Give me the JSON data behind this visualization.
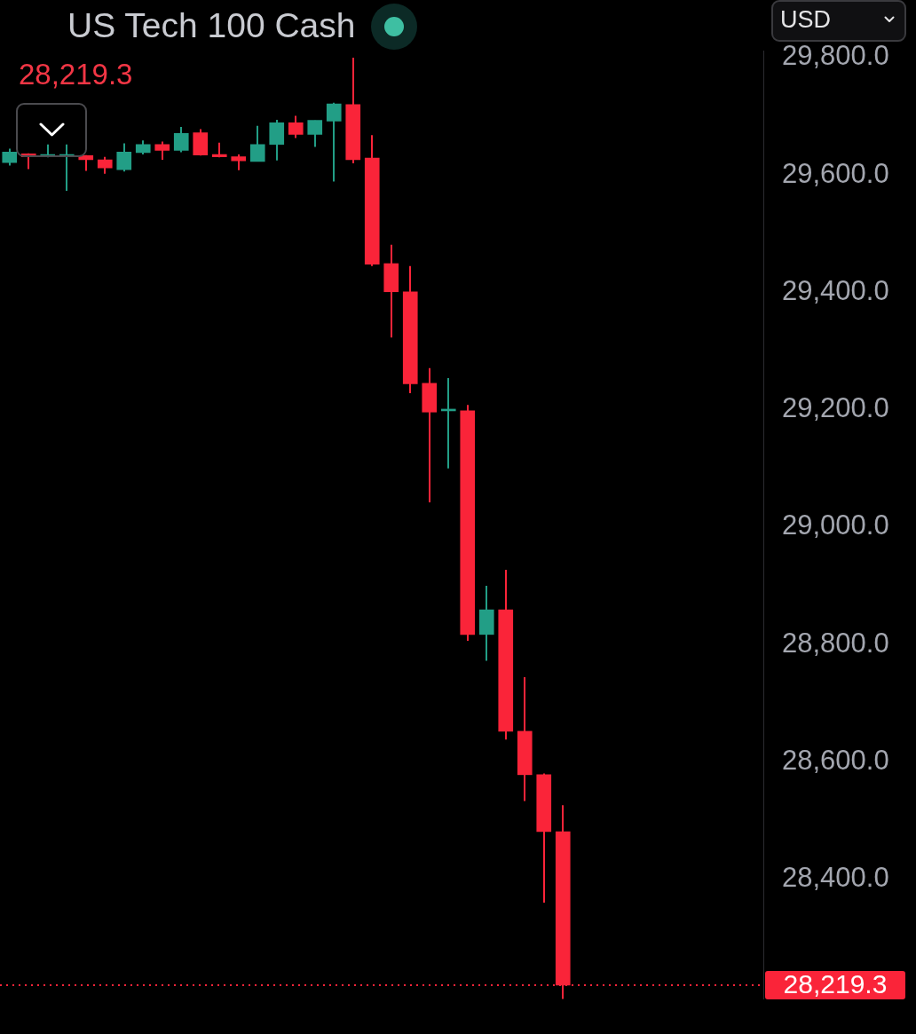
{
  "chart_data": {
    "type": "candlestick",
    "title": "US Tech 100 Cash",
    "subtitle": "28,219.3",
    "ylabel": "USD",
    "categories": [
      null,
      null,
      null,
      null,
      null,
      null,
      null,
      null,
      null,
      null,
      null,
      null,
      null,
      null,
      null,
      null,
      null,
      null,
      null,
      null,
      null,
      null,
      null,
      null,
      null,
      null,
      null,
      null,
      null,
      null,
      null,
      null,
      null,
      null,
      null,
      null,
      null,
      null,
      null,
      null
    ],
    "ohlc": [
      [
        29621,
        29645,
        29616,
        29639
      ],
      [
        29636,
        29637,
        29610,
        29631
      ],
      [
        29631,
        29652,
        29630,
        29635
      ],
      [
        29631,
        29652,
        29573,
        29635
      ],
      [
        29633,
        29634,
        29607,
        29626
      ],
      [
        29626,
        29631,
        29602,
        29612
      ],
      [
        29609,
        29654,
        29606,
        29639
      ],
      [
        29638,
        29659,
        29635,
        29652
      ],
      [
        29652,
        29657,
        29626,
        29642
      ],
      [
        29642,
        29682,
        29639,
        29671
      ],
      [
        29672,
        29678,
        29633,
        29634
      ],
      [
        29635,
        29655,
        29630,
        29631
      ],
      [
        29631,
        29635,
        29608,
        29624
      ],
      [
        29623,
        29684,
        29623,
        29652
      ],
      [
        29652,
        29694,
        29625,
        29689
      ],
      [
        29689,
        29701,
        29663,
        29669
      ],
      [
        29669,
        29693,
        29648,
        29693
      ],
      [
        29692,
        29723,
        29589,
        29721
      ],
      [
        29720,
        29800,
        29620,
        29626
      ],
      [
        29629,
        29668,
        29445,
        29448
      ],
      [
        29449,
        29481,
        29323,
        29401
      ],
      [
        29401,
        29445,
        29228,
        29244
      ],
      [
        29245,
        29271,
        29042,
        29196
      ],
      [
        29198,
        29254,
        29100,
        29199
      ],
      [
        29198,
        29208,
        28806,
        28817
      ],
      [
        28817,
        28900,
        28772,
        28859
      ],
      [
        28859,
        28927,
        28638,
        28652
      ],
      [
        28652,
        28744,
        28533,
        28578
      ],
      [
        28578,
        28580,
        28360,
        28481
      ],
      [
        28481,
        28526,
        28196,
        28219.3
      ],
      null,
      null,
      null,
      null,
      null,
      null,
      null,
      null,
      null,
      null
    ],
    "colors": [
      "#229e86",
      "#fa2439",
      "#229e86",
      "#229e86",
      "#fa2439",
      "#fa2439",
      "#229e86",
      "#229e86",
      "#fa2439",
      "#229e86",
      "#fa2439",
      "#fa2439",
      "#fa2439",
      "#229e86",
      "#229e86",
      "#fa2439",
      "#229e86",
      "#229e86",
      "#fa2439",
      "#fa2439",
      "#fa2439",
      "#fa2439",
      "#fa2439",
      "#229e86",
      "#fa2439",
      "#229e86",
      "#fa2439",
      "#fa2439",
      "#fa2439",
      "#fa2439",
      null,
      null,
      null,
      null,
      null,
      null,
      null,
      null,
      null,
      null
    ],
    "ylim": [
      28196,
      29812
    ],
    "yticks": [
      {
        "value": 28400,
        "label": "28,400.0"
      },
      {
        "value": 28600,
        "label": "28,600.0"
      },
      {
        "value": 28800,
        "label": "28,800.0"
      },
      {
        "value": 29000,
        "label": "29,000.0"
      },
      {
        "value": 29200,
        "label": "29,200.0"
      },
      {
        "value": 29400,
        "label": "29,400.0"
      },
      {
        "value": 29600,
        "label": "29,600.0"
      },
      {
        "value": 29800,
        "label": "29,800.0"
      }
    ],
    "tick_labels": "y",
    "ref_lines": [
      {
        "axis": "y",
        "value": 28219.3,
        "label": "28,219.3",
        "color": "#fa2439",
        "line_style": "dotted"
      }
    ]
  }
}
